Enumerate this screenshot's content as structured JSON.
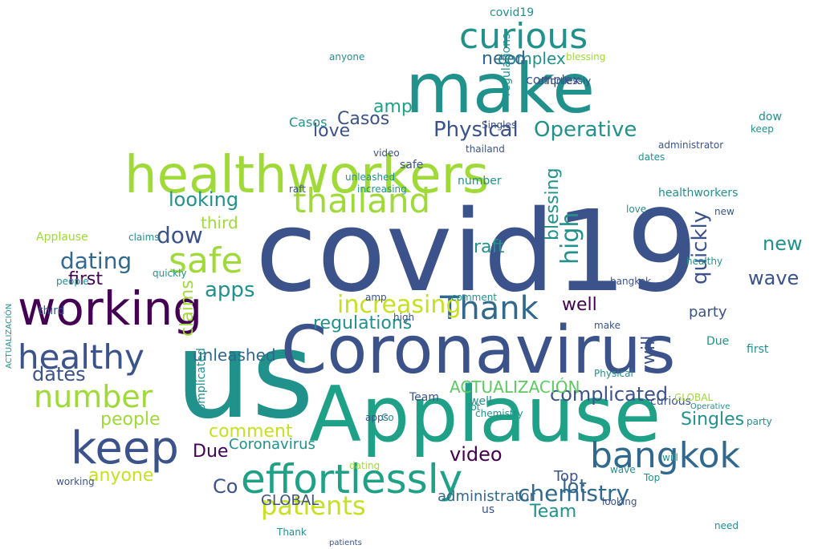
{
  "word_cloud": {
    "palette": [
      "#440154",
      "#3b528b",
      "#21918c",
      "#1fa187",
      "#5ec962",
      "#a0da39",
      "#c8e020",
      "#31688e"
    ],
    "words": [
      {
        "text": "covid19",
        "color": "#3b528b"
      },
      {
        "text": "us",
        "color": "#21918c"
      },
      {
        "text": "Applause",
        "color": "#1fa187"
      },
      {
        "text": "Coronavirus",
        "color": "#3b528b"
      },
      {
        "text": "healthworkers",
        "color": "#a0da39"
      },
      {
        "text": "make",
        "color": "#21918c"
      },
      {
        "text": "working",
        "color": "#440154"
      },
      {
        "text": "keep",
        "color": "#3b528b"
      },
      {
        "text": "curious",
        "color": "#21918c"
      },
      {
        "text": "thailand",
        "color": "#a0da39"
      },
      {
        "text": "effortlessly",
        "color": "#1fa187"
      },
      {
        "text": "bangkok",
        "color": "#31688e"
      },
      {
        "text": "Thank",
        "color": "#31688e"
      },
      {
        "text": "healthy",
        "color": "#3b528b"
      },
      {
        "text": "safe",
        "color": "#a0da39"
      },
      {
        "text": "number",
        "color": "#a0da39"
      },
      {
        "text": "patients",
        "color": "#c8e020"
      },
      {
        "text": "increasing",
        "color": "#c8e020"
      },
      {
        "text": "complicated",
        "color": "#3b528b"
      },
      {
        "text": "ACTUALIZACIÓN",
        "color": "#5ec962"
      },
      {
        "text": "Operative",
        "color": "#21918c"
      },
      {
        "text": "Physical",
        "color": "#3b528b"
      },
      {
        "text": "dating",
        "color": "#31688e"
      },
      {
        "text": "apps",
        "color": "#21918c"
      },
      {
        "text": "dow",
        "color": "#3b528b"
      },
      {
        "text": "looking",
        "color": "#21918c"
      },
      {
        "text": "Singles",
        "color": "#21918c"
      },
      {
        "text": "video",
        "color": "#440154"
      },
      {
        "text": "chemistry",
        "color": "#31688e"
      },
      {
        "text": "Team",
        "color": "#21918c"
      },
      {
        "text": "people",
        "color": "#a0da39"
      },
      {
        "text": "anyone",
        "color": "#c8e020"
      },
      {
        "text": "quickly",
        "color": "#3b528b"
      },
      {
        "text": "high",
        "color": "#21918c"
      },
      {
        "text": "raft",
        "color": "#21918c"
      },
      {
        "text": "blessing",
        "color": "#21918c"
      },
      {
        "text": "dates",
        "color": "#3b528b"
      },
      {
        "text": "first",
        "color": "#440154"
      },
      {
        "text": "unleashed",
        "color": "#31688e"
      },
      {
        "text": "regulations",
        "color": "#21918c"
      },
      {
        "text": "comment",
        "color": "#c8e020"
      },
      {
        "text": "love",
        "color": "#3b528b"
      },
      {
        "text": "complex",
        "color": "#21918c"
      },
      {
        "text": "need",
        "color": "#31688e"
      },
      {
        "text": "amp",
        "color": "#1fa187"
      },
      {
        "text": "Casos",
        "color": "#3b528b"
      },
      {
        "text": "claims",
        "color": "#a0da39"
      },
      {
        "text": "third",
        "color": "#a0da39"
      },
      {
        "text": "GLOBAL",
        "color": "#3b528b"
      },
      {
        "text": "administrator",
        "color": "#31688e"
      },
      {
        "text": "Co",
        "color": "#3b528b"
      },
      {
        "text": "lot",
        "color": "#31688e"
      },
      {
        "text": "Top",
        "color": "#3b528b"
      },
      {
        "text": "party",
        "color": "#3b528b"
      },
      {
        "text": "Due",
        "color": "#440154"
      },
      {
        "text": "well",
        "color": "#440154"
      },
      {
        "text": "wave",
        "color": "#3b528b"
      },
      {
        "text": "new",
        "color": "#21918c"
      },
      {
        "text": "will",
        "color": "#3b528b"
      },
      {
        "text": "covid19",
        "color": "#21918c"
      },
      {
        "text": "Coronavirus",
        "color": "#21918c"
      },
      {
        "text": "healthworkers",
        "color": "#21918c"
      },
      {
        "text": "Casos",
        "color": "#21918c"
      },
      {
        "text": "administrator",
        "color": "#3b528b"
      },
      {
        "text": "complex",
        "color": "#3b528b"
      },
      {
        "text": "Physical",
        "color": "#21918c"
      },
      {
        "text": "dating",
        "color": "#a0da39"
      },
      {
        "text": "Applause",
        "color": "#a0da39"
      },
      {
        "text": "bangkok",
        "color": "#3b528b"
      },
      {
        "text": "Operative",
        "color": "#21918c"
      },
      {
        "text": "people",
        "color": "#21918c"
      },
      {
        "text": "quickly",
        "color": "#21918c"
      },
      {
        "text": "complicated",
        "color": "#21918c"
      },
      {
        "text": "effortlessly",
        "color": "#3b528b"
      },
      {
        "text": "unleashed",
        "color": "#21918c"
      },
      {
        "text": "regulations",
        "color": "#21918c"
      },
      {
        "text": "increasing",
        "color": "#21918c"
      },
      {
        "text": "thailand",
        "color": "#3b528b"
      },
      {
        "text": "chemistry",
        "color": "#21918c"
      },
      {
        "text": "blessing",
        "color": "#a0da39"
      },
      {
        "text": "patients",
        "color": "#3b528b"
      },
      {
        "text": "healthy",
        "color": "#21918c"
      },
      {
        "text": "anyone",
        "color": "#21918c"
      },
      {
        "text": "comment",
        "color": "#21918c"
      },
      {
        "text": "working",
        "color": "#3b528b"
      },
      {
        "text": "curious",
        "color": "#3b528b"
      },
      {
        "text": "looking",
        "color": "#3b528b"
      },
      {
        "text": "Singles",
        "color": "#3b528b"
      },
      {
        "text": "number",
        "color": "#21918c"
      },
      {
        "text": "GLOBAL",
        "color": "#a0da39"
      },
      {
        "text": "claims",
        "color": "#21918c"
      },
      {
        "text": "video",
        "color": "#3b528b"
      },
      {
        "text": "dates",
        "color": "#21918c"
      },
      {
        "text": "third",
        "color": "#3b528b"
      },
      {
        "text": "party",
        "color": "#21918c"
      },
      {
        "text": "first",
        "color": "#21918c"
      },
      {
        "text": "apps",
        "color": "#3b528b"
      },
      {
        "text": "raft",
        "color": "#3b528b"
      },
      {
        "text": "high",
        "color": "#3b528b"
      },
      {
        "text": "love",
        "color": "#21918c"
      },
      {
        "text": "wave",
        "color": "#21918c"
      },
      {
        "text": "keep",
        "color": "#21918c"
      },
      {
        "text": "make",
        "color": "#3b528b"
      },
      {
        "text": "safe",
        "color": "#3b528b"
      },
      {
        "text": "Team",
        "color": "#3b528b"
      },
      {
        "text": "need",
        "color": "#21918c"
      },
      {
        "text": "Thank",
        "color": "#21918c"
      },
      {
        "text": "well",
        "color": "#21918c"
      },
      {
        "text": "will",
        "color": "#21918c"
      },
      {
        "text": "dow",
        "color": "#21918c"
      },
      {
        "text": "amp",
        "color": "#3b528b"
      },
      {
        "text": "Due",
        "color": "#21918c"
      },
      {
        "text": "lot",
        "color": "#21918c"
      },
      {
        "text": "Top",
        "color": "#21918c"
      },
      {
        "text": "new",
        "color": "#3b528b"
      },
      {
        "text": "Co",
        "color": "#21918c"
      },
      {
        "text": "us",
        "color": "#3b528b"
      },
      {
        "text": "ACTUALIZACIÓN",
        "color": "#21918c"
      }
    ]
  }
}
